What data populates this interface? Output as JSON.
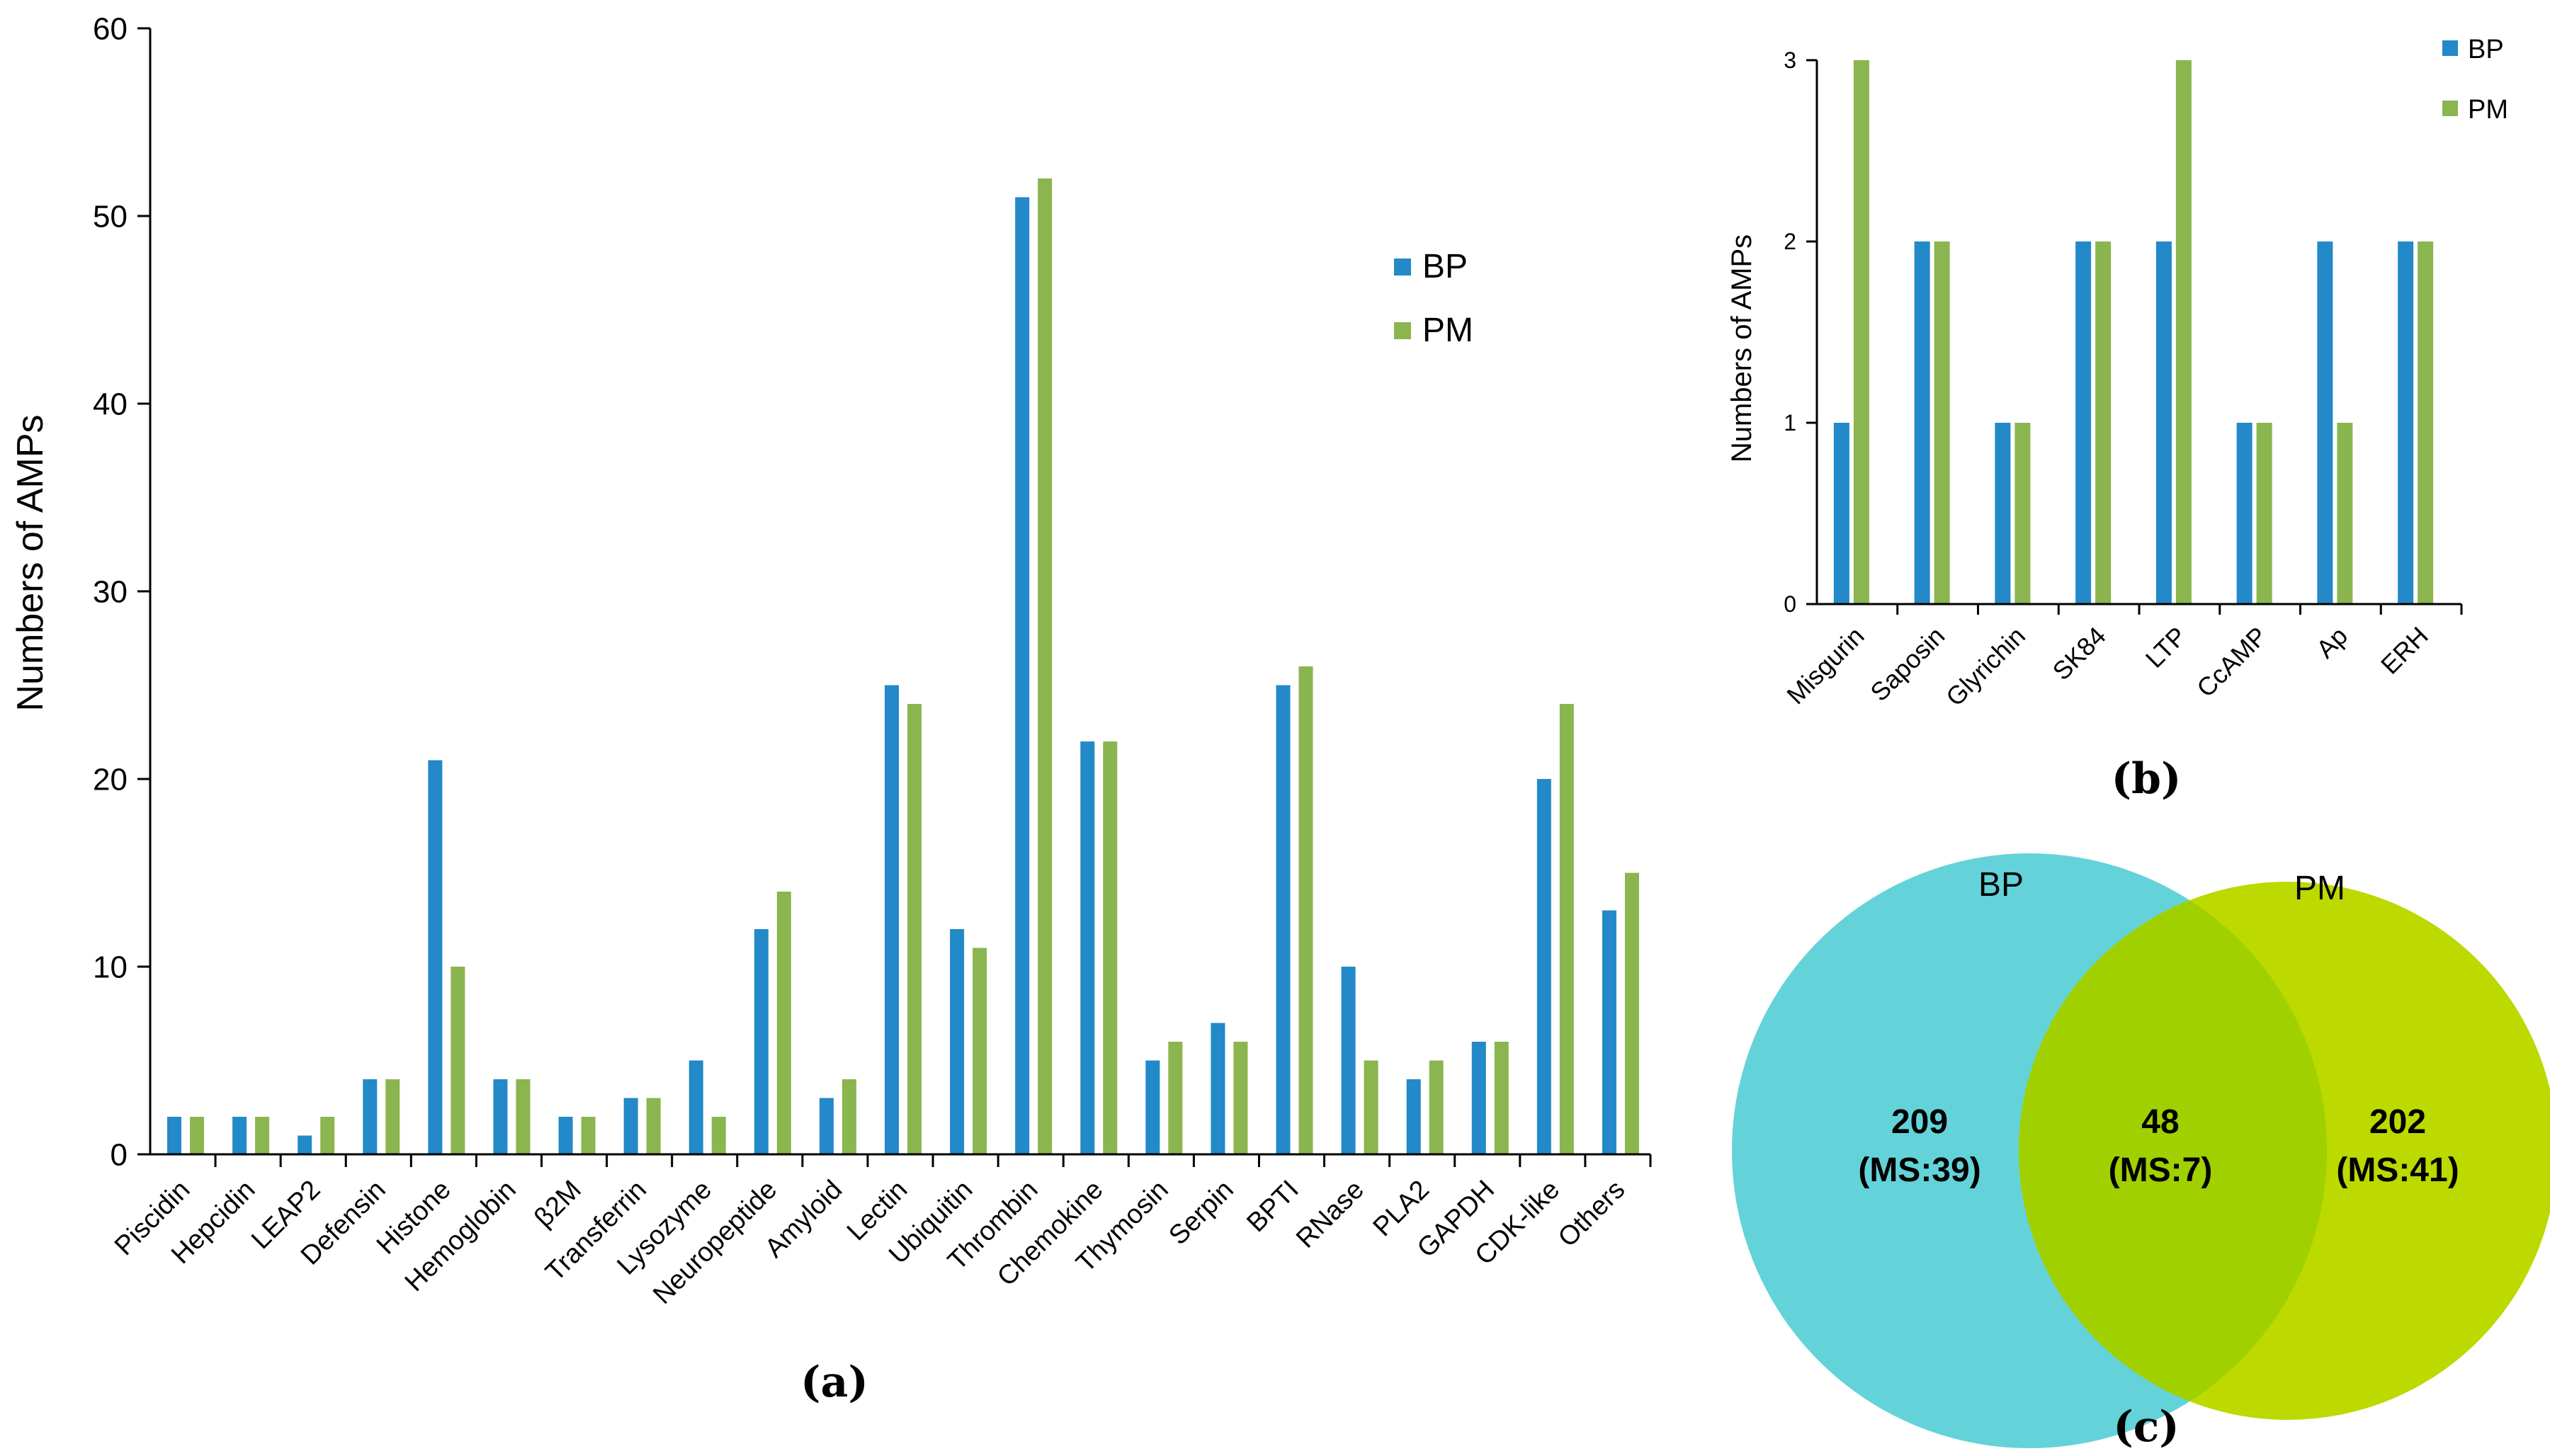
{
  "colors": {
    "bp": "#2389c9",
    "pm": "#8bb54f",
    "venn_bp": "#63d3d9",
    "venn_pm": "#bcd900",
    "venn_overlap": "#a0d000"
  },
  "chart_data": [
    {
      "type": "bar",
      "panel": "(a)",
      "categories": [
        "Piscidin",
        "Hepcidin",
        "LEAP2",
        "Defensin",
        "Histone",
        "Hemoglobin",
        "β2M",
        "Transferrin",
        "Lysozyme",
        "Neuropeptide",
        "Amyloid",
        "Lectin",
        "Ubiquitin",
        "Thrombin",
        "Chemokine",
        "Thymosin",
        "Serpin",
        "BPTI",
        "RNase",
        "PLA2",
        "GAPDH",
        "CDK-like",
        "Others"
      ],
      "series": [
        {
          "name": "BP",
          "values": [
            2,
            2,
            1,
            4,
            21,
            4,
            2,
            3,
            5,
            12,
            3,
            25,
            12,
            51,
            22,
            5,
            7,
            25,
            10,
            4,
            6,
            20,
            13
          ]
        },
        {
          "name": "PM",
          "values": [
            2,
            2,
            2,
            4,
            10,
            4,
            2,
            3,
            2,
            14,
            4,
            24,
            11,
            52,
            22,
            6,
            6,
            26,
            5,
            5,
            6,
            24,
            15
          ]
        }
      ],
      "ylabel": "Numbers of AMPs",
      "ylim": [
        0,
        60
      ],
      "yticks": [
        "0",
        "10",
        "20",
        "30",
        "40",
        "50",
        "60"
      ],
      "legend": [
        "BP",
        "PM"
      ],
      "legend_position": "top-right"
    },
    {
      "type": "bar",
      "panel": "(b)",
      "categories": [
        "Misgurin",
        "Saposin",
        "Glyrichin",
        "SK84",
        "LTP",
        "CcAMP",
        "Ap",
        "ERH"
      ],
      "series": [
        {
          "name": "BP",
          "values": [
            1,
            2,
            1,
            2,
            2,
            1,
            2,
            2
          ]
        },
        {
          "name": "PM",
          "values": [
            3,
            2,
            1,
            2,
            3,
            1,
            1,
            2
          ]
        }
      ],
      "ylabel": "Numbers of AMPs",
      "ylim": [
        0,
        3
      ],
      "yticks": [
        "0",
        "1",
        "2",
        "3"
      ],
      "legend": [
        "BP",
        "PM"
      ],
      "legend_position": "top-right"
    },
    {
      "type": "venn",
      "panel": "(c)",
      "sets": [
        "BP",
        "PM"
      ],
      "regions": [
        {
          "count": "209",
          "note": "(MS:39)"
        },
        {
          "count": "48",
          "note": "(MS:7)"
        },
        {
          "count": "202",
          "note": "(MS:41)"
        }
      ]
    }
  ]
}
